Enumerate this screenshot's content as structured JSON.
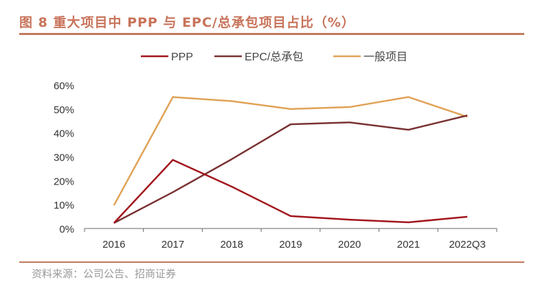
{
  "title": "图 8 重大项目中 PPP 与 EPC/总承包项目占比（%）",
  "source": "资料来源：公司公告、招商证券",
  "chart_data": {
    "type": "line",
    "categories": [
      "2016",
      "2017",
      "2018",
      "2019",
      "2020",
      "2021",
      "2022Q3"
    ],
    "yticks": [
      "0%",
      "10%",
      "20%",
      "30%",
      "40%",
      "50%",
      "60%"
    ],
    "ylim": [
      0,
      60
    ],
    "legend_position": "top",
    "grid": false,
    "series": [
      {
        "name": "PPP",
        "color": "#a3141c",
        "values": [
          2.3,
          28.7,
          17.5,
          5.2,
          3.7,
          2.6,
          4.9
        ]
      },
      {
        "name": "EPC/总承包",
        "color": "#7a3232",
        "values": [
          2.3,
          15.2,
          29.0,
          43.6,
          44.4,
          41.3,
          47.3
        ]
      },
      {
        "name": "一般项目",
        "color": "#e0a256",
        "values": [
          9.7,
          55.0,
          53.3,
          50.0,
          50.8,
          55.0,
          46.7
        ]
      }
    ]
  }
}
